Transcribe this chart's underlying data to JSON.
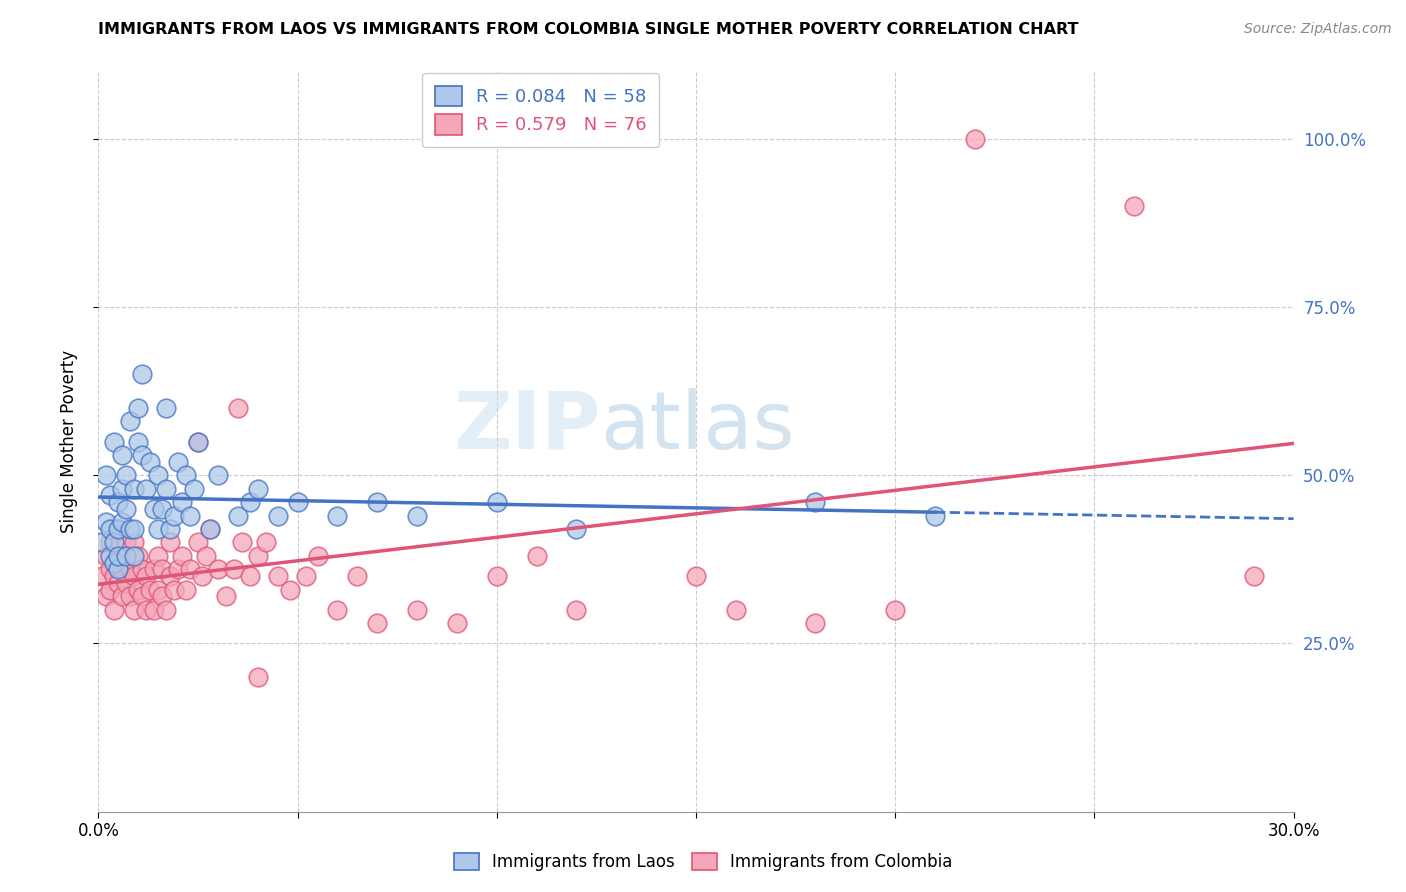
{
  "title": "IMMIGRANTS FROM LAOS VS IMMIGRANTS FROM COLOMBIA SINGLE MOTHER POVERTY CORRELATION CHART",
  "source": "Source: ZipAtlas.com",
  "ylabel": "Single Mother Poverty",
  "x_min": 0.0,
  "x_max": 0.3,
  "y_min": 0.0,
  "y_max": 1.1,
  "x_ticks": [
    0.0,
    0.05,
    0.1,
    0.15,
    0.2,
    0.25,
    0.3
  ],
  "x_tick_labels": [
    "0.0%",
    "",
    "",
    "",
    "",
    "",
    "30.0%"
  ],
  "y_ticks": [
    0.25,
    0.5,
    0.75,
    1.0
  ],
  "y_tick_labels": [
    "25.0%",
    "50.0%",
    "75.0%",
    "100.0%"
  ],
  "laos_R": 0.084,
  "laos_N": 58,
  "colombia_R": 0.579,
  "colombia_N": 76,
  "laos_color": "#adc8e8",
  "laos_line_color": "#4472c4",
  "colombia_color": "#f4a7b9",
  "colombia_line_color": "#e05577",
  "watermark_zip": "ZIP",
  "watermark_atlas": "atlas",
  "laos_x": [
    0.001,
    0.002,
    0.002,
    0.003,
    0.003,
    0.003,
    0.004,
    0.004,
    0.004,
    0.005,
    0.005,
    0.005,
    0.005,
    0.006,
    0.006,
    0.006,
    0.007,
    0.007,
    0.007,
    0.008,
    0.008,
    0.009,
    0.009,
    0.009,
    0.01,
    0.01,
    0.011,
    0.011,
    0.012,
    0.013,
    0.014,
    0.015,
    0.015,
    0.016,
    0.017,
    0.017,
    0.018,
    0.019,
    0.02,
    0.021,
    0.022,
    0.023,
    0.024,
    0.025,
    0.028,
    0.03,
    0.035,
    0.038,
    0.04,
    0.045,
    0.05,
    0.06,
    0.07,
    0.08,
    0.1,
    0.12,
    0.18,
    0.21
  ],
  "laos_y": [
    0.4,
    0.43,
    0.5,
    0.38,
    0.42,
    0.47,
    0.37,
    0.4,
    0.55,
    0.36,
    0.38,
    0.42,
    0.46,
    0.43,
    0.48,
    0.53,
    0.45,
    0.5,
    0.38,
    0.42,
    0.58,
    0.38,
    0.42,
    0.48,
    0.55,
    0.6,
    0.53,
    0.65,
    0.48,
    0.52,
    0.45,
    0.42,
    0.5,
    0.45,
    0.48,
    0.6,
    0.42,
    0.44,
    0.52,
    0.46,
    0.5,
    0.44,
    0.48,
    0.55,
    0.42,
    0.5,
    0.44,
    0.46,
    0.48,
    0.44,
    0.46,
    0.44,
    0.46,
    0.44,
    0.46,
    0.42,
    0.46,
    0.44
  ],
  "colombia_x": [
    0.001,
    0.002,
    0.002,
    0.003,
    0.003,
    0.003,
    0.004,
    0.004,
    0.005,
    0.005,
    0.005,
    0.006,
    0.006,
    0.006,
    0.007,
    0.007,
    0.007,
    0.008,
    0.008,
    0.009,
    0.009,
    0.009,
    0.01,
    0.01,
    0.011,
    0.011,
    0.012,
    0.012,
    0.013,
    0.014,
    0.014,
    0.015,
    0.015,
    0.016,
    0.016,
    0.017,
    0.018,
    0.018,
    0.019,
    0.02,
    0.021,
    0.022,
    0.023,
    0.025,
    0.026,
    0.027,
    0.028,
    0.03,
    0.032,
    0.034,
    0.036,
    0.038,
    0.04,
    0.042,
    0.045,
    0.048,
    0.052,
    0.055,
    0.06,
    0.065,
    0.07,
    0.08,
    0.09,
    0.1,
    0.11,
    0.12,
    0.15,
    0.16,
    0.18,
    0.2,
    0.025,
    0.035,
    0.04,
    0.22,
    0.26,
    0.29
  ],
  "colombia_y": [
    0.35,
    0.32,
    0.38,
    0.36,
    0.33,
    0.4,
    0.35,
    0.3,
    0.38,
    0.34,
    0.42,
    0.36,
    0.32,
    0.38,
    0.34,
    0.37,
    0.4,
    0.32,
    0.36,
    0.3,
    0.35,
    0.4,
    0.33,
    0.38,
    0.32,
    0.36,
    0.3,
    0.35,
    0.33,
    0.3,
    0.36,
    0.33,
    0.38,
    0.32,
    0.36,
    0.3,
    0.35,
    0.4,
    0.33,
    0.36,
    0.38,
    0.33,
    0.36,
    0.4,
    0.35,
    0.38,
    0.42,
    0.36,
    0.32,
    0.36,
    0.4,
    0.35,
    0.38,
    0.4,
    0.35,
    0.33,
    0.35,
    0.38,
    0.3,
    0.35,
    0.28,
    0.3,
    0.28,
    0.35,
    0.38,
    0.3,
    0.35,
    0.3,
    0.28,
    0.3,
    0.55,
    0.6,
    0.2,
    1.0,
    0.9,
    0.35
  ]
}
